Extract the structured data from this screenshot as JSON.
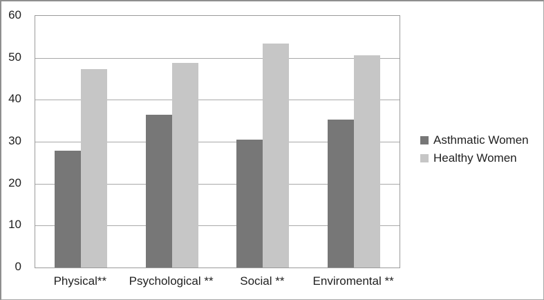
{
  "figure": {
    "background": "#ffffff",
    "border_color": "#8f8f8f",
    "plot_border_color": "#9a9a9a",
    "gridline_color": "#a8a8a8",
    "text_color": "#212121"
  },
  "chart_data": {
    "type": "bar",
    "title": "",
    "xlabel": "",
    "ylabel": "",
    "categories": [
      "Physical**",
      "Psychological **",
      "Social **",
      "Enviromental **"
    ],
    "series": [
      {
        "name": "Asthmatic Women",
        "color": "#777777",
        "values": [
          27.8,
          36.4,
          30.5,
          35.3
        ]
      },
      {
        "name": "Healthy Women",
        "color": "#c6c6c6",
        "values": [
          47.3,
          48.8,
          53.4,
          50.6
        ]
      }
    ],
    "ylim": [
      0,
      60
    ],
    "yticks": [
      0,
      10,
      20,
      30,
      40,
      50,
      60
    ],
    "grid": true,
    "legend_position": "right"
  }
}
